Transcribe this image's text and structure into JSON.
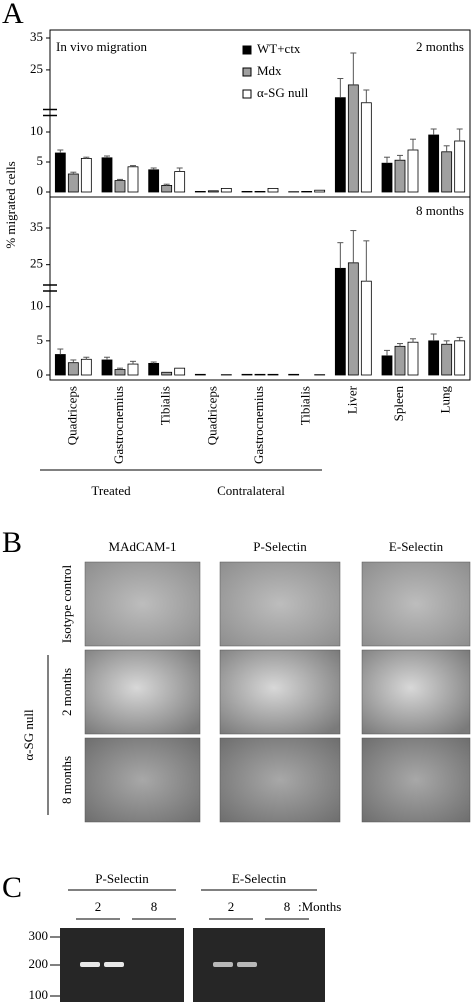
{
  "panel_a": {
    "label": "A",
    "y_label": "% migrated cells",
    "annotation": "In vivo migration",
    "groups": [
      "Treated",
      "Contralateral"
    ]
  },
  "chart_data": [
    {
      "type": "bar",
      "title": "2 months",
      "ylim": [
        0,
        35
      ],
      "ybreak": [
        12,
        14
      ],
      "yticks": [
        0,
        5,
        10,
        25,
        35
      ],
      "series": [
        {
          "name": "WT+ctx",
          "color": "#000000",
          "values": [
            6.5,
            5.7,
            3.7,
            0.1,
            0.1,
            0.05,
            16.3,
            4.8,
            9.5
          ],
          "errors": [
            0.5,
            0.3,
            0.3,
            0,
            0,
            0,
            6,
            1,
            1
          ]
        },
        {
          "name": "Mdx",
          "color": "#a0a0a0",
          "values": [
            3.0,
            1.9,
            1.1,
            0.2,
            0.1,
            0.1,
            20.3,
            5.3,
            6.7
          ],
          "errors": [
            0.3,
            0.2,
            0.2,
            0,
            0,
            0,
            10,
            0.8,
            1
          ]
        },
        {
          "name": "α-SG null",
          "color": "#ffffff",
          "values": [
            5.6,
            4.2,
            3.4,
            0.6,
            0.6,
            0.3,
            14.7,
            7,
            8.5
          ],
          "errors": [
            0.2,
            0.2,
            0.6,
            0,
            0,
            0,
            4,
            1.8,
            2
          ]
        }
      ]
    },
    {
      "type": "bar",
      "title": "8 months",
      "categories": [
        "Quadriceps",
        "Gastrocnemius",
        "Tibialis",
        "Quadriceps",
        "Gastrocnemius",
        "Tibialis",
        "Liver",
        "Spleen",
        "Lung"
      ],
      "ylim": [
        0,
        35
      ],
      "ybreak": [
        12,
        20
      ],
      "yticks": [
        0,
        5,
        10,
        25,
        35
      ],
      "series": [
        {
          "name": "WT+ctx",
          "color": "#000000",
          "values": [
            3.0,
            2.2,
            1.7,
            0.1,
            0.1,
            0.1,
            24,
            2.8,
            5
          ],
          "errors": [
            0.8,
            0.4,
            0.2,
            0,
            0,
            0,
            7,
            0.8,
            1
          ]
        },
        {
          "name": "Mdx",
          "color": "#a0a0a0",
          "values": [
            1.8,
            0.8,
            0.4,
            0,
            0.1,
            0,
            25.5,
            4.2,
            4.5
          ],
          "errors": [
            0.4,
            0.2,
            0,
            0,
            0,
            0,
            8.8,
            0.4,
            0.5
          ]
        },
        {
          "name": "α-SG null",
          "color": "#ffffff",
          "values": [
            2.3,
            1.6,
            1.0,
            0.05,
            0.1,
            0.05,
            20.5,
            4.8,
            5
          ],
          "errors": [
            0.3,
            0.4,
            0,
            0,
            0,
            0,
            11,
            0.5,
            0.5
          ]
        }
      ]
    }
  ],
  "panel_b": {
    "label": "B",
    "columns": [
      "MAdCAM-1",
      "P-Selectin",
      "E-Selectin"
    ],
    "rows": [
      "Isotype control",
      "2 months",
      "8 months"
    ],
    "group_label": "α-SG null"
  },
  "panel_c": {
    "label": "C",
    "groups": [
      {
        "name": "P-Selectin",
        "lanes": [
          "2",
          "8"
        ]
      },
      {
        "name": "E-Selectin",
        "lanes": [
          "2",
          "8"
        ]
      }
    ],
    "unit_label": ":Months",
    "ladder": [
      "300",
      "200",
      "100"
    ]
  }
}
